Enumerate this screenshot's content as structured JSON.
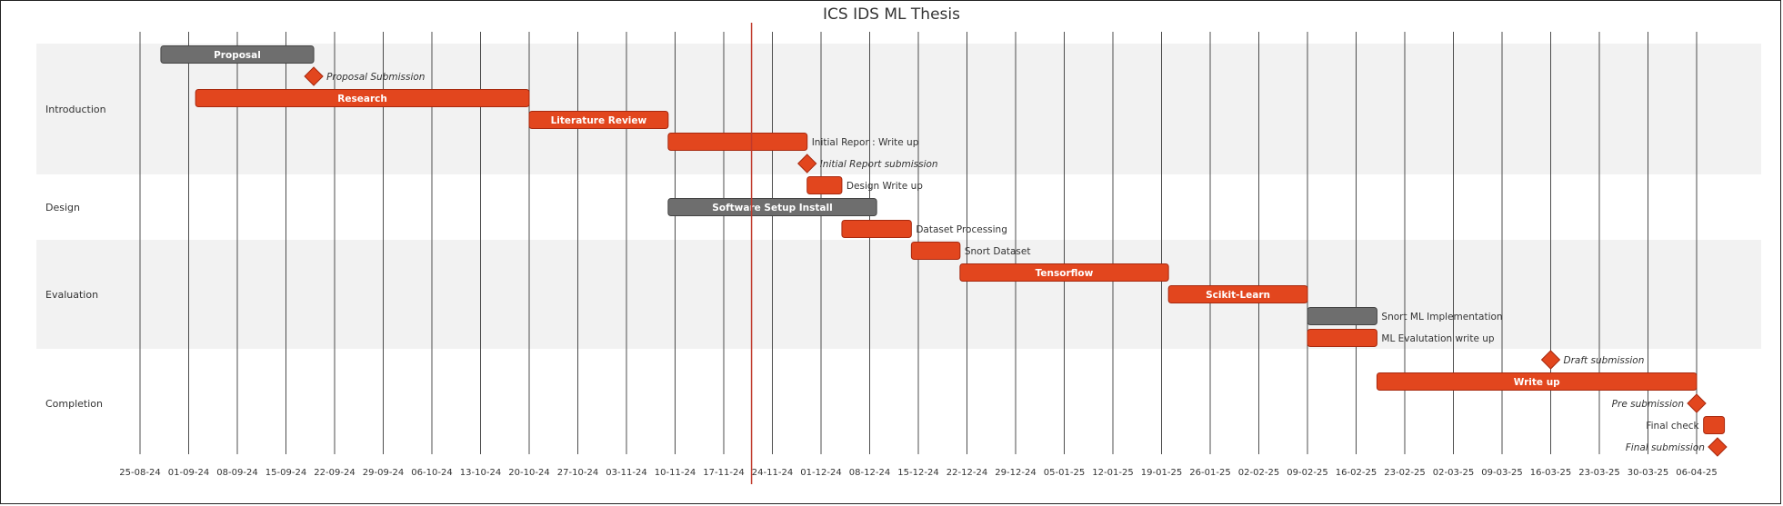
{
  "chart_data": {
    "type": "gantt",
    "title": "ICS IDS ML Thesis",
    "today": "2024-11-21",
    "colors": {
      "accent": "#e2461e",
      "accent_border": "#a7290f",
      "done": "#6e6e6e",
      "done_border": "#444444",
      "today_line": "#c0392b",
      "section_band": "#f2f2f2",
      "grid": "#222222"
    },
    "x_ticks": [
      "25-08-24",
      "01-09-24",
      "08-09-24",
      "15-09-24",
      "22-09-24",
      "29-09-24",
      "06-10-24",
      "13-10-24",
      "20-10-24",
      "27-10-24",
      "03-11-24",
      "10-11-24",
      "17-11-24",
      "24-11-24",
      "01-12-24",
      "08-12-24",
      "15-12-24",
      "22-12-24",
      "29-12-24",
      "05-01-25",
      "12-01-25",
      "19-01-25",
      "26-01-25",
      "02-02-25",
      "09-02-25",
      "16-02-25",
      "23-02-25",
      "02-03-25",
      "09-03-25",
      "16-03-25",
      "23-03-25",
      "30-03-25",
      "06-04-25"
    ],
    "sections": [
      {
        "name": "Introduction",
        "shaded": true,
        "tasks": [
          {
            "name": "Proposal",
            "start": "2024-08-28",
            "end": "2024-09-19",
            "status": "done"
          },
          {
            "name": "Proposal Submission",
            "start": "2024-09-19",
            "end": "2024-09-19",
            "milestone": true
          },
          {
            "name": "Research",
            "start": "2024-09-02",
            "end": "2024-10-20",
            "status": "active"
          },
          {
            "name": "Literature Review",
            "start": "2024-10-20",
            "end": "2024-11-09",
            "status": "active"
          },
          {
            "name": "Initial Repor : Write up",
            "start": "2024-11-09",
            "end": "2024-11-29",
            "status": "active"
          },
          {
            "name": "Initial Report submission",
            "start": "2024-11-29",
            "end": "2024-11-29",
            "milestone": true
          }
        ]
      },
      {
        "name": "Design",
        "shaded": false,
        "tasks": [
          {
            "name": "Design Write up",
            "start": "2024-11-29",
            "end": "2024-12-04",
            "status": "active"
          },
          {
            "name": "Software Setup Install",
            "start": "2024-11-09",
            "end": "2024-12-09",
            "status": "done"
          },
          {
            "name": "Dataset Processing",
            "start": "2024-12-04",
            "end": "2024-12-14",
            "status": "active"
          }
        ]
      },
      {
        "name": "Evaluation",
        "shaded": true,
        "tasks": [
          {
            "name": "Snort Dataset",
            "start": "2024-12-14",
            "end": "2024-12-21",
            "status": "active"
          },
          {
            "name": "Tensorflow",
            "start": "2024-12-21",
            "end": "2025-01-20",
            "status": "active"
          },
          {
            "name": "Scikit-Learn",
            "start": "2025-01-20",
            "end": "2025-02-09",
            "status": "active"
          },
          {
            "name": "Snort ML Implementation",
            "start": "2025-02-09",
            "end": "2025-02-19",
            "status": "done"
          },
          {
            "name": "ML Evalutation write up",
            "start": "2025-02-09",
            "end": "2025-02-19",
            "status": "active"
          }
        ]
      },
      {
        "name": "Completion",
        "shaded": false,
        "tasks": [
          {
            "name": "Draft submission",
            "start": "2025-03-16",
            "end": "2025-03-16",
            "milestone": true
          },
          {
            "name": "Write up",
            "start": "2025-02-19",
            "end": "2025-04-06",
            "status": "active"
          },
          {
            "name": "Pre submission",
            "start": "2025-04-06",
            "end": "2025-04-06",
            "milestone": true
          },
          {
            "name": "Final check",
            "start": "2025-04-07",
            "end": "2025-04-10",
            "status": "active"
          },
          {
            "name": "Final submission",
            "start": "2025-04-09",
            "end": "2025-04-09",
            "milestone": true
          }
        ]
      }
    ]
  }
}
